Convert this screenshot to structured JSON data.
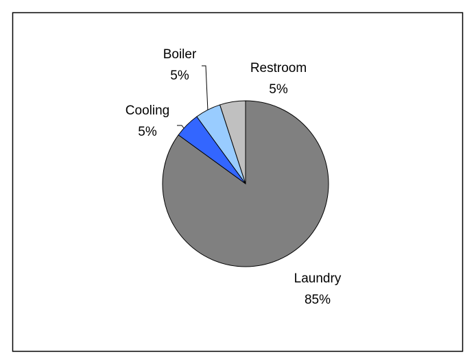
{
  "chart_data": {
    "type": "pie",
    "categories": [
      "Laundry",
      "Cooling",
      "Boiler",
      "Restroom"
    ],
    "values": [
      85,
      5,
      5,
      5
    ],
    "value_labels": [
      "85%",
      "5%",
      "5%",
      "5%"
    ],
    "colors": [
      "#808080",
      "#3366ff",
      "#99ccff",
      "#c0c0c0"
    ]
  }
}
